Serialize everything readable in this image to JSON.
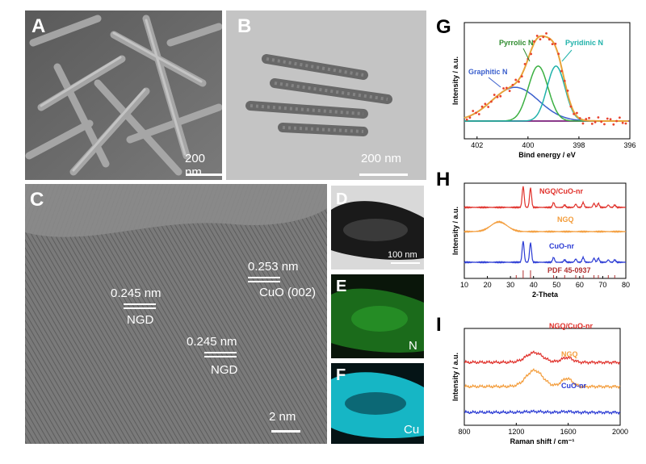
{
  "panels": {
    "A": {
      "label": "A",
      "scale": "200 nm"
    },
    "B": {
      "label": "B",
      "scale": "200 nm"
    },
    "C": {
      "label": "C",
      "scale": "2 nm",
      "annotations": [
        "0.253 nm",
        "CuO (002)",
        "0.245 nm",
        "NGD",
        "0.245 nm",
        "NGD"
      ]
    },
    "D": {
      "label": "D",
      "scale": "100 nm"
    },
    "E": {
      "label": "E",
      "element": "N"
    },
    "F": {
      "label": "F",
      "element": "Cu"
    },
    "G": {
      "label": "G"
    },
    "H": {
      "label": "H"
    },
    "I": {
      "label": "I"
    }
  },
  "colors": {
    "N_map": "#1f7a1f",
    "Cu_map": "#18d0e0"
  },
  "chart_data": [
    {
      "panel": "G",
      "type": "line",
      "xlabel": "Bind energy / eV",
      "ylabel": "Intensity / a.u.",
      "xlim": [
        402.5,
        396
      ],
      "x_ticks": [
        402,
        400,
        398,
        396
      ],
      "annotations": [
        "Graphitic N",
        "Pyrrolic N",
        "Pyridinic N"
      ],
      "series": [
        {
          "name": "Graphitic N",
          "color": "#3a5fcd",
          "center": 400.5,
          "height": 0.38,
          "width": 1.3
        },
        {
          "name": "Pyrrolic N",
          "color": "#3cb043",
          "center": 399.6,
          "height": 0.62,
          "width": 0.55
        },
        {
          "name": "Pyridinic N",
          "color": "#20b2aa",
          "center": 398.9,
          "height": 0.62,
          "width": 0.5
        }
      ],
      "baseline_color": "#8b3a8b",
      "fit_color": "#e8a33a",
      "point_color": "#e8432e"
    },
    {
      "panel": "H",
      "type": "line",
      "xlabel": "2-Theta",
      "ylabel": "Intensity / a.u.",
      "xlim": [
        10,
        80
      ],
      "x_ticks": [
        10,
        20,
        30,
        40,
        50,
        60,
        70,
        80
      ],
      "series": [
        {
          "name": "NGQ/CuO-nr",
          "color": "#e0302a"
        },
        {
          "name": "NGQ",
          "color": "#f39c3a"
        },
        {
          "name": "CuO-nr",
          "color": "#2a3ad4"
        },
        {
          "name": "PDF 45-0937",
          "color": "#b03030"
        }
      ],
      "reference_peaks": [
        32.5,
        35.5,
        38.7,
        48.7,
        53.5,
        58.3,
        61.5,
        66.2,
        68.1,
        72.4,
        75.2
      ]
    },
    {
      "panel": "I",
      "type": "line",
      "xlabel": "Raman shift / cm⁻¹",
      "ylabel": "Intensity / a.u.",
      "xlim": [
        800,
        2000
      ],
      "x_ticks": [
        800,
        1200,
        1600,
        2000
      ],
      "series": [
        {
          "name": "NGQ/CuO-nr",
          "color": "#e0302a"
        },
        {
          "name": "NGQ",
          "color": "#f39c3a"
        },
        {
          "name": "CuO-nr",
          "color": "#2a3ad4"
        }
      ]
    }
  ]
}
